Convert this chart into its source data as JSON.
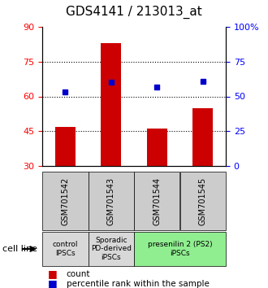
{
  "title": "GDS4141 / 213013_at",
  "samples": [
    "GSM701542",
    "GSM701543",
    "GSM701544",
    "GSM701545"
  ],
  "bar_values": [
    47.0,
    83.0,
    46.0,
    55.0
  ],
  "bar_bottom": 30,
  "dot_values": [
    62.0,
    66.0,
    64.0,
    66.5
  ],
  "left_ylim": [
    30,
    90
  ],
  "right_ylim": [
    0,
    100
  ],
  "left_yticks": [
    30,
    45,
    60,
    75,
    90
  ],
  "right_yticks": [
    0,
    25,
    50,
    75,
    100
  ],
  "right_yticklabels": [
    "0",
    "25",
    "50",
    "75",
    "100%"
  ],
  "hlines": [
    45,
    60,
    75
  ],
  "bar_color": "#cc0000",
  "dot_color": "#0000cc",
  "cell_line_label": "cell line",
  "legend_count_label": "count",
  "legend_pct_label": "percentile rank within the sample",
  "groups": [
    {
      "label": "control\nIPSCs",
      "cols": [
        0
      ],
      "color": "#d8d8d8"
    },
    {
      "label": "Sporadic\nPD-derived\niPSCs",
      "cols": [
        1
      ],
      "color": "#d8d8d8"
    },
    {
      "label": "presenilin 2 (PS2)\niPSCs",
      "cols": [
        2,
        3
      ],
      "color": "#90EE90"
    }
  ]
}
